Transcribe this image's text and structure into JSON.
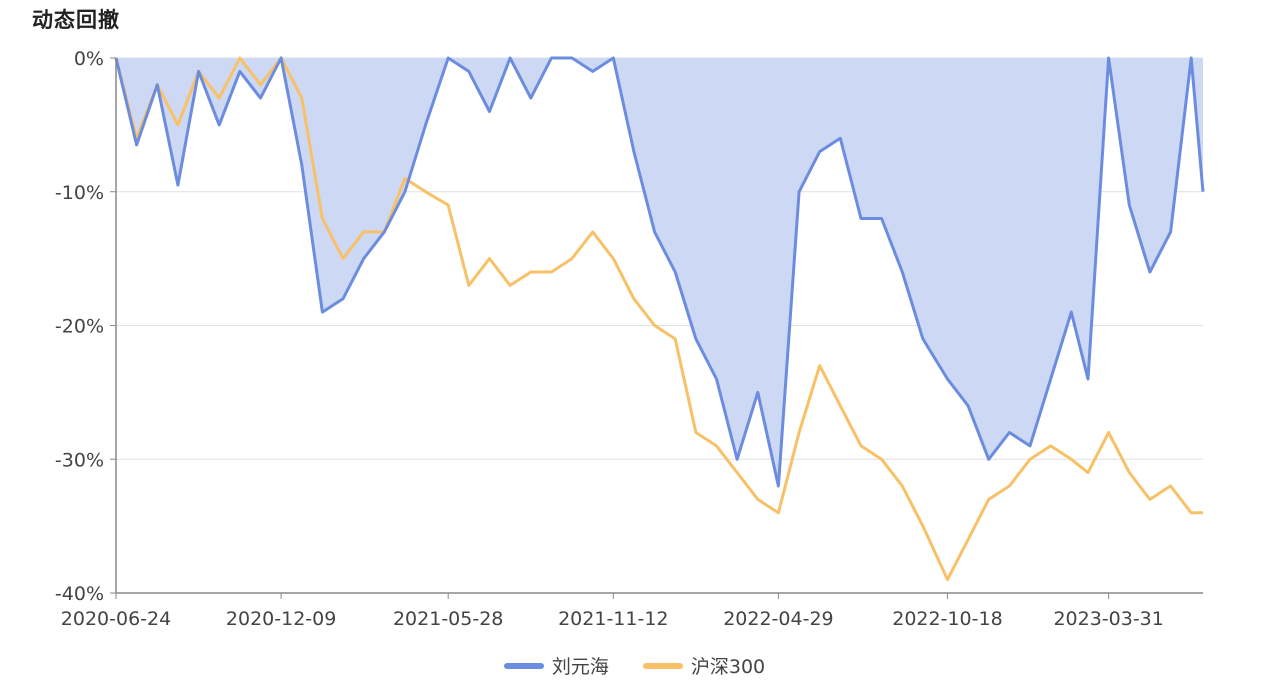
{
  "title": "动态回撤",
  "chart_data": {
    "type": "area",
    "title": "动态回撤",
    "xlabel": "",
    "ylabel": "",
    "ylim": [
      -40,
      0
    ],
    "y_ticks": [
      "0%",
      "-10%",
      "-20%",
      "-30%",
      "-40%"
    ],
    "x_ticks": [
      "2020-06-24",
      "2020-12-09",
      "2021-05-28",
      "2021-11-12",
      "2022-04-29",
      "2022-10-18",
      "2023-03-31"
    ],
    "grid": true,
    "legend_position": "bottom",
    "series": [
      {
        "name": "刘元海",
        "color": "#6c8ce0",
        "fill": "#cdd8f4",
        "x": [
          "2020-06-24",
          "2020-07-15",
          "2020-08-05",
          "2020-08-26",
          "2020-09-16",
          "2020-10-07",
          "2020-10-28",
          "2020-11-18",
          "2020-12-09",
          "2020-12-30",
          "2021-01-20",
          "2021-02-10",
          "2021-03-03",
          "2021-03-24",
          "2021-04-14",
          "2021-05-05",
          "2021-05-28",
          "2021-06-18",
          "2021-07-09",
          "2021-07-30",
          "2021-08-20",
          "2021-09-10",
          "2021-10-01",
          "2021-10-22",
          "2021-11-12",
          "2021-12-03",
          "2021-12-24",
          "2022-01-14",
          "2022-02-04",
          "2022-02-25",
          "2022-03-18",
          "2022-04-08",
          "2022-04-29",
          "2022-05-20",
          "2022-06-10",
          "2022-07-01",
          "2022-07-22",
          "2022-08-12",
          "2022-09-02",
          "2022-09-23",
          "2022-10-18",
          "2022-11-08",
          "2022-11-29",
          "2022-12-20",
          "2023-01-10",
          "2023-01-31",
          "2023-02-21",
          "2023-03-10",
          "2023-03-31",
          "2023-04-21",
          "2023-05-12",
          "2023-06-02",
          "2023-06-23",
          "2023-07-05"
        ],
        "values": [
          0,
          -6.5,
          -2,
          -9.5,
          -1,
          -5,
          -1,
          -3,
          0,
          -8,
          -19,
          -18,
          -15,
          -13,
          -10,
          -5,
          0,
          -1,
          -4,
          0,
          -3,
          0,
          0,
          -1,
          0,
          -7,
          -13,
          -16,
          -21,
          -24,
          -30,
          -25,
          -32,
          -10,
          -7,
          -6,
          -12,
          -12,
          -16,
          -21,
          -24,
          -26,
          -30,
          -28,
          -29,
          -24,
          -19,
          -24,
          0,
          -11,
          -16,
          -13,
          0,
          -10
        ]
      },
      {
        "name": "沪深300",
        "color": "#f8c167",
        "x": [
          "2020-06-24",
          "2020-07-15",
          "2020-08-05",
          "2020-08-26",
          "2020-09-16",
          "2020-10-07",
          "2020-10-28",
          "2020-11-18",
          "2020-12-09",
          "2020-12-30",
          "2021-01-20",
          "2021-02-10",
          "2021-03-03",
          "2021-03-24",
          "2021-04-14",
          "2021-05-05",
          "2021-05-28",
          "2021-06-18",
          "2021-07-09",
          "2021-07-30",
          "2021-08-20",
          "2021-09-10",
          "2021-10-01",
          "2021-10-22",
          "2021-11-12",
          "2021-12-03",
          "2021-12-24",
          "2022-01-14",
          "2022-02-04",
          "2022-02-25",
          "2022-03-18",
          "2022-04-08",
          "2022-04-29",
          "2022-05-20",
          "2022-06-10",
          "2022-07-01",
          "2022-07-22",
          "2022-08-12",
          "2022-09-02",
          "2022-09-23",
          "2022-10-18",
          "2022-11-08",
          "2022-11-29",
          "2022-12-20",
          "2023-01-10",
          "2023-01-31",
          "2023-02-21",
          "2023-03-10",
          "2023-03-31",
          "2023-04-21",
          "2023-05-12",
          "2023-06-02",
          "2023-06-23",
          "2023-07-05"
        ],
        "values": [
          0,
          -6,
          -2,
          -5,
          -1,
          -3,
          0,
          -2,
          0,
          -3,
          -12,
          -15,
          -13,
          -13,
          -9,
          -10,
          -11,
          -17,
          -15,
          -17,
          -16,
          -16,
          -15,
          -13,
          -15,
          -18,
          -20,
          -21,
          -28,
          -29,
          -31,
          -33,
          -34,
          -28,
          -23,
          -26,
          -29,
          -30,
          -32,
          -35,
          -39,
          -36,
          -33,
          -32,
          -30,
          -29,
          -30,
          -31,
          -28,
          -31,
          -33,
          -32,
          -34,
          -34
        ]
      }
    ]
  }
}
